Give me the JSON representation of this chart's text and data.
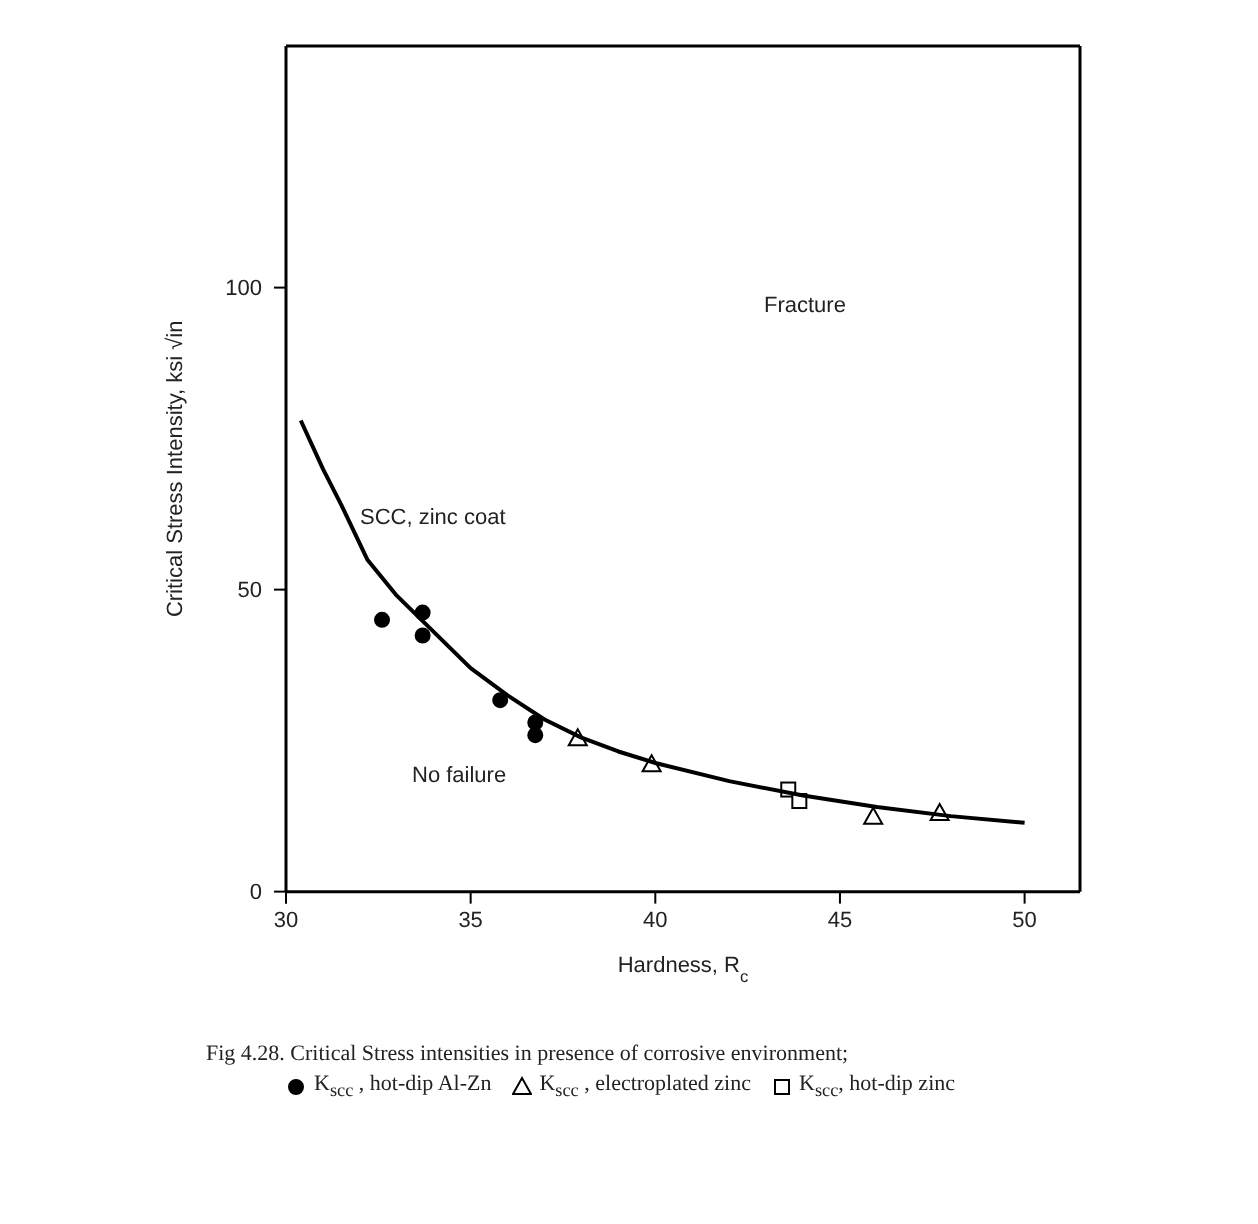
{
  "chart_data": {
    "type": "scatter",
    "xlabel": "Hardness, R$_{c}$",
    "ylabel": "Critical Stress Intensity, ksi √in",
    "xlim": [
      30,
      51.5
    ],
    "ylim": [
      0,
      140
    ],
    "xticks": [
      30,
      35,
      40,
      45,
      50
    ],
    "yticks": [
      0,
      50,
      100
    ],
    "grid": false,
    "legend": "bottom",
    "legend_title": "Fig 4.28. Critical Stress intensities in presence of corrosive environment;",
    "series": [
      {
        "name": "K$_{scc}$ , hot-dip Al-Zn",
        "marker": "circle",
        "color": "#000000",
        "x": [
          32.6,
          33.7,
          33.7,
          35.8,
          36.75,
          36.75
        ],
        "values": [
          45.0,
          46.2,
          42.4,
          31.7,
          28.0,
          25.9
        ]
      },
      {
        "name": "K$_{scc}$ , electroplated zinc",
        "marker": "triangle",
        "color": "#000000",
        "x": [
          37.9,
          39.9,
          45.9,
          47.7
        ],
        "values": [
          25.4,
          21.1,
          12.4,
          13.0
        ]
      },
      {
        "name": "K$_{scc}$, hot-dip zinc",
        "marker": "square",
        "color": "#000000",
        "x": [
          43.6,
          43.9
        ],
        "values": [
          16.9,
          15.0
        ]
      },
      {
        "type": "line",
        "marker": "none",
        "line_style": "solid",
        "color": "#000000",
        "x": [
          30.4,
          31,
          31.5,
          32.2,
          33,
          34,
          35,
          36,
          37,
          38,
          39,
          40,
          42,
          44,
          46,
          48,
          50
        ],
        "values": [
          78,
          70,
          64,
          55,
          49,
          43,
          37,
          32.5,
          28.5,
          25.5,
          23.2,
          21.3,
          18.3,
          15.9,
          14.0,
          12.5,
          11.4
        ]
      }
    ],
    "annotations": [
      "Fracture",
      "SCC, zinc coat",
      "No failure"
    ]
  }
}
